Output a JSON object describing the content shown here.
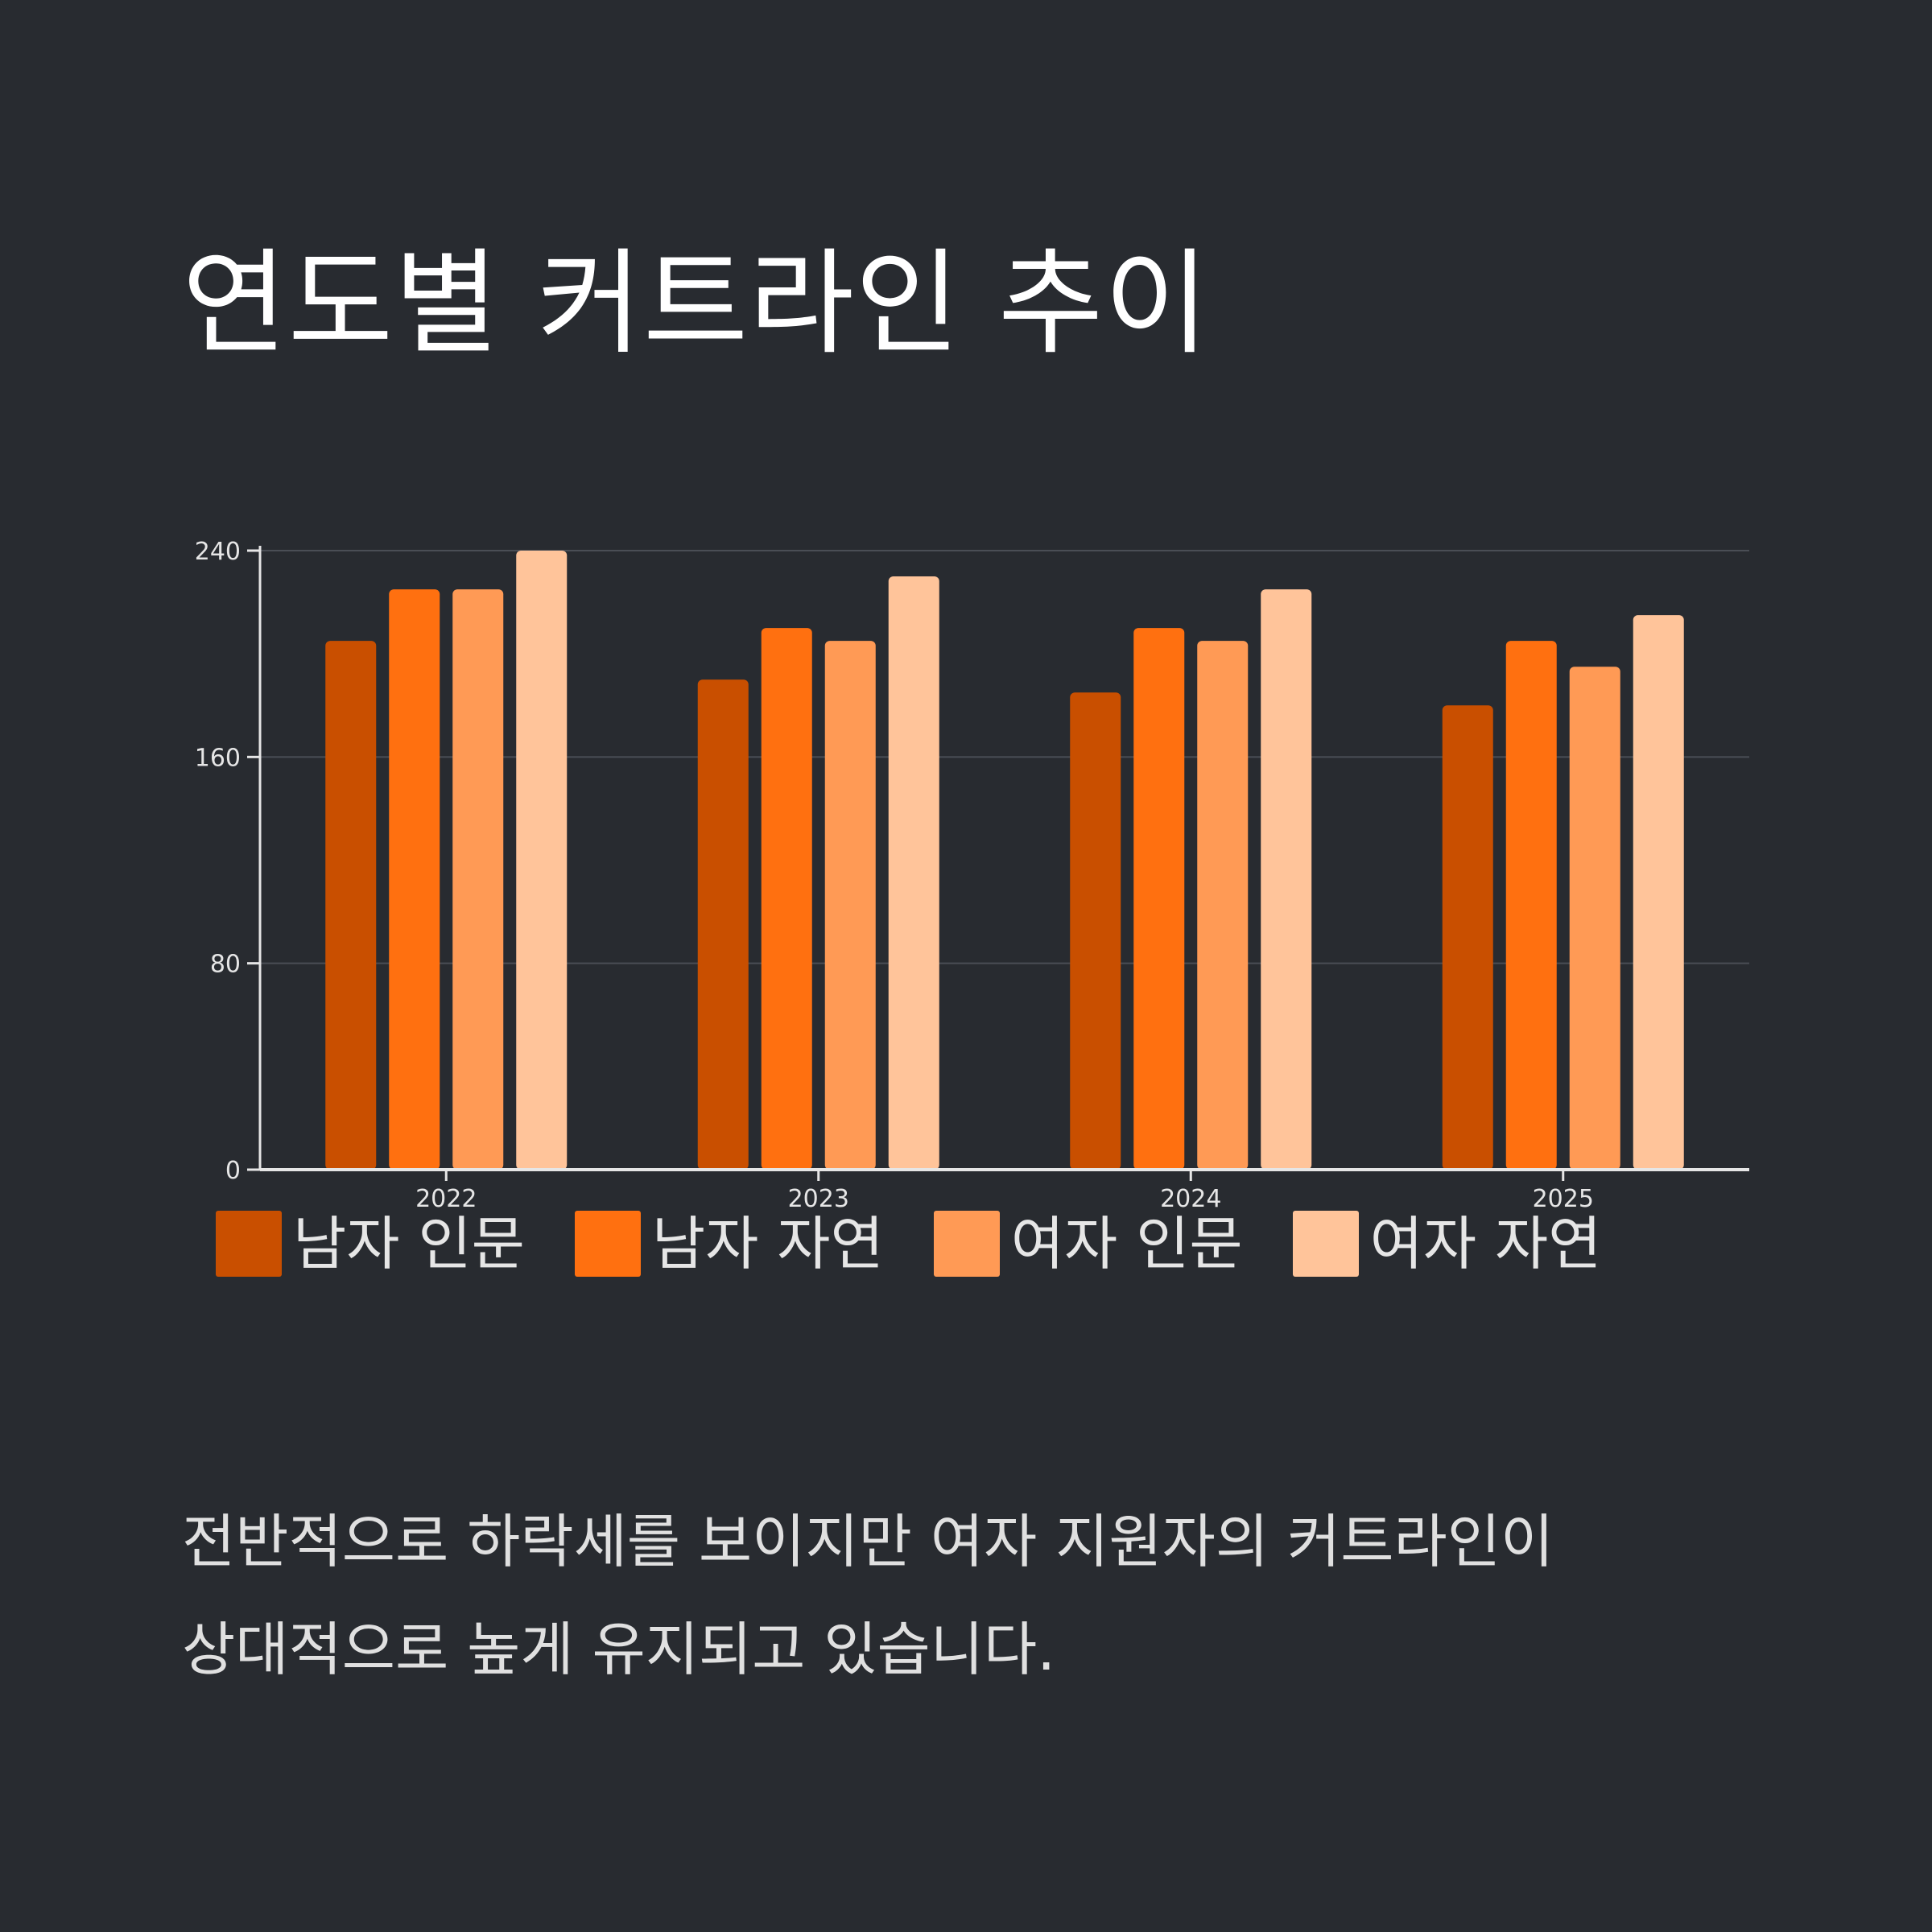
{
  "title": "연도별 커트라인 추이",
  "caption": {
    "line1": "전반적으로 하락세를 보이지만 여자 지원자의 커트라인이",
    "line2": "상대적으로 높게 유지되고 있습니다."
  },
  "chart_data": {
    "type": "bar",
    "categories": [
      "2022",
      "2023",
      "2024",
      "2025"
    ],
    "series": [
      {
        "name": "남자 인문",
        "color": "#c94f00",
        "values": [
          205,
          190,
          185,
          180
        ]
      },
      {
        "name": "남자 자연",
        "color": "#ff7010",
        "values": [
          225,
          210,
          210,
          205
        ]
      },
      {
        "name": "여자 인문",
        "color": "#ff9a55",
        "values": [
          225,
          205,
          205,
          195
        ]
      },
      {
        "name": "여자 자연",
        "color": "#ffc49a",
        "values": [
          240,
          230,
          225,
          215
        ]
      }
    ],
    "ylim": [
      0,
      240
    ],
    "yticks": [
      0,
      80,
      160,
      240
    ],
    "grid": true,
    "legend_position": "bottom",
    "xlabel": "",
    "ylabel": ""
  }
}
